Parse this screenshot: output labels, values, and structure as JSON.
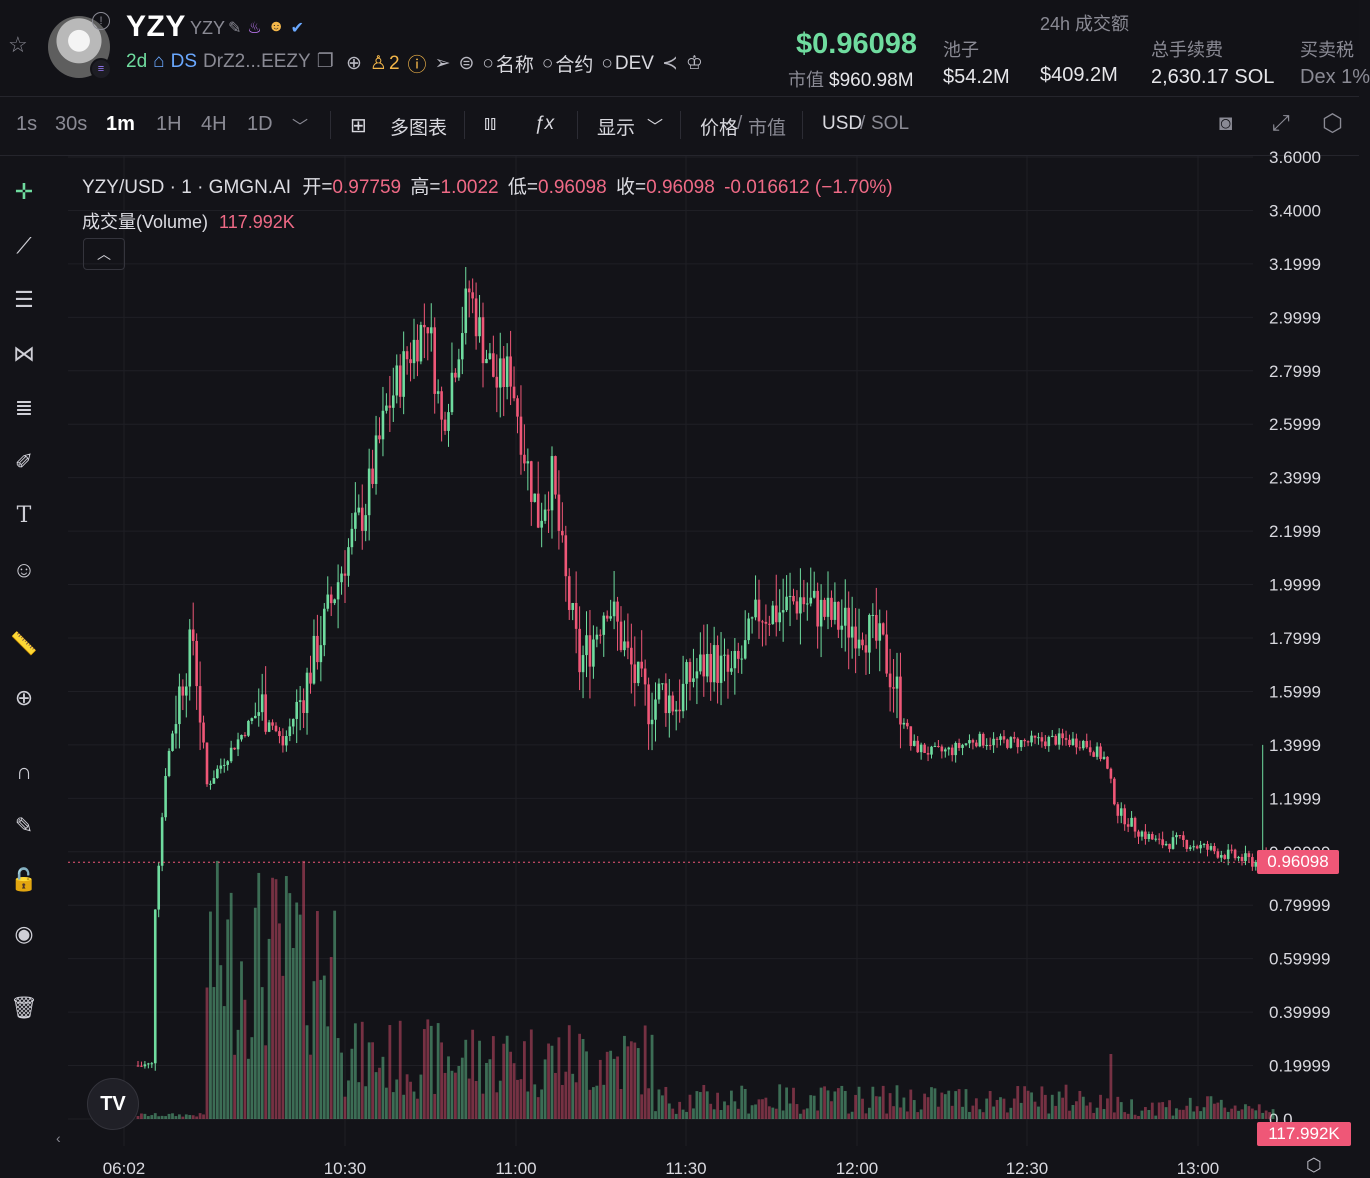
{
  "header": {
    "token_name": "YZY",
    "token_symbol": "YZY",
    "age": "2d",
    "dex_label": "DS",
    "address": "DrZ2...EEZY",
    "holders_count": "2",
    "search_name": "名称",
    "search_contract": "合约",
    "search_dev": "DEV",
    "price": "$0.96098",
    "market_cap_label": "市值",
    "market_cap": "$960.98M",
    "pool_label": "池子",
    "pool_value": "$54.2M",
    "volume_label": "24h 成交额",
    "volume_value": "$409.2M",
    "fees_label": "总手续费",
    "fees_value": "2,630.17 SOL",
    "tax_label": "买卖税",
    "tax_value": "Dex 1%"
  },
  "toolbar": {
    "timeframes": [
      "1s",
      "30s",
      "1m",
      "1H",
      "4H",
      "1D"
    ],
    "active_timeframe": "1m",
    "multi_chart": "多图表",
    "display": "显示",
    "price_label": "价格",
    "mcap_label": "市值",
    "usd_label": "USD",
    "sol_label": "SOL"
  },
  "legend": {
    "pair": "YZY/USD · 1 · GMGN.AI",
    "open_label": "开=",
    "open": "0.97759",
    "high_label": "高=",
    "high": "1.0022",
    "low_label": "低=",
    "low": "0.96098",
    "close_label": "收=",
    "close": "0.96098",
    "change": "-0.016612 (−1.70%)",
    "volume_label": "成交量(Volume)",
    "volume": "117.992K"
  },
  "colors": {
    "up": "#6fdc9f",
    "down": "#ef5777",
    "bg": "#131318",
    "grid": "#1f1f25"
  },
  "chart_data": {
    "type": "candlestick",
    "title": "YZY/USD · 1 · GMGN.AI",
    "y_ticks": [
      "3.6000",
      "3.4000",
      "3.1999",
      "2.9999",
      "2.7999",
      "2.5999",
      "2.3999",
      "2.1999",
      "1.9999",
      "1.7999",
      "1.5999",
      "1.3999",
      "1.1999",
      "0.99999",
      "0.79999",
      "0.59999",
      "0.39999",
      "0.19999",
      "0.0"
    ],
    "y_tick_values": [
      3.6,
      3.4,
      3.2,
      3.0,
      2.8,
      2.6,
      2.4,
      2.2,
      2.0,
      1.8,
      1.6,
      1.4,
      1.2,
      1.0,
      0.8,
      0.6,
      0.4,
      0.2,
      0.0
    ],
    "x_ticks": [
      "06:02",
      "10:30",
      "11:00",
      "11:30",
      "12:00",
      "12:30",
      "13:00"
    ],
    "last_price": "0.96098",
    "last_volume": "117.992K",
    "ylim": [
      0,
      3.6
    ],
    "path_points": [
      [
        0,
        0.2
      ],
      [
        4,
        0.2
      ],
      [
        5,
        0.8
      ],
      [
        8,
        1.3
      ],
      [
        12,
        1.6
      ],
      [
        16,
        1.8
      ],
      [
        20,
        1.25
      ],
      [
        28,
        1.4
      ],
      [
        36,
        1.55
      ],
      [
        42,
        1.4
      ],
      [
        48,
        1.6
      ],
      [
        54,
        1.85
      ],
      [
        60,
        2.1
      ],
      [
        66,
        2.3
      ],
      [
        72,
        2.65
      ],
      [
        78,
        2.85
      ],
      [
        84,
        3.0
      ],
      [
        88,
        2.6
      ],
      [
        92,
        2.85
      ],
      [
        96,
        3.1
      ],
      [
        100,
        2.9
      ],
      [
        104,
        2.75
      ],
      [
        108,
        2.8
      ],
      [
        112,
        2.5
      ],
      [
        116,
        2.25
      ],
      [
        120,
        2.4
      ],
      [
        124,
        2.0
      ],
      [
        128,
        1.7
      ],
      [
        132,
        1.8
      ],
      [
        136,
        1.95
      ],
      [
        140,
        1.8
      ],
      [
        144,
        1.65
      ],
      [
        148,
        1.55
      ],
      [
        152,
        1.6
      ],
      [
        156,
        1.55
      ],
      [
        160,
        1.65
      ],
      [
        166,
        1.72
      ],
      [
        172,
        1.65
      ],
      [
        176,
        1.75
      ],
      [
        180,
        1.9
      ],
      [
        186,
        1.9
      ],
      [
        192,
        1.95
      ],
      [
        198,
        1.9
      ],
      [
        204,
        1.85
      ],
      [
        210,
        1.85
      ],
      [
        216,
        1.75
      ],
      [
        220,
        1.6
      ],
      [
        224,
        1.4
      ],
      [
        230,
        1.37
      ],
      [
        236,
        1.38
      ],
      [
        242,
        1.42
      ],
      [
        250,
        1.41
      ],
      [
        258,
        1.41
      ],
      [
        266,
        1.42
      ],
      [
        274,
        1.41
      ],
      [
        280,
        1.35
      ],
      [
        284,
        1.15
      ],
      [
        290,
        1.08
      ],
      [
        296,
        1.03
      ],
      [
        302,
        1.04
      ],
      [
        310,
        1.01
      ],
      [
        318,
        0.98
      ],
      [
        324,
        0.96
      ],
      [
        326,
        0.97
      ],
      [
        328,
        0.96
      ]
    ],
    "spike": {
      "index": 326,
      "high": 1.4
    }
  },
  "rail": [
    "crosshair-icon",
    "trendline-icon",
    "horizontal-lines-icon",
    "pattern-icon",
    "fib-icon",
    "brush-icon",
    "text-icon",
    "emoji-icon",
    "ruler-icon",
    "zoom-in-icon",
    "magnet-icon",
    "lock-draw-icon",
    "unlock-icon",
    "eye-icon",
    "trash-icon"
  ]
}
